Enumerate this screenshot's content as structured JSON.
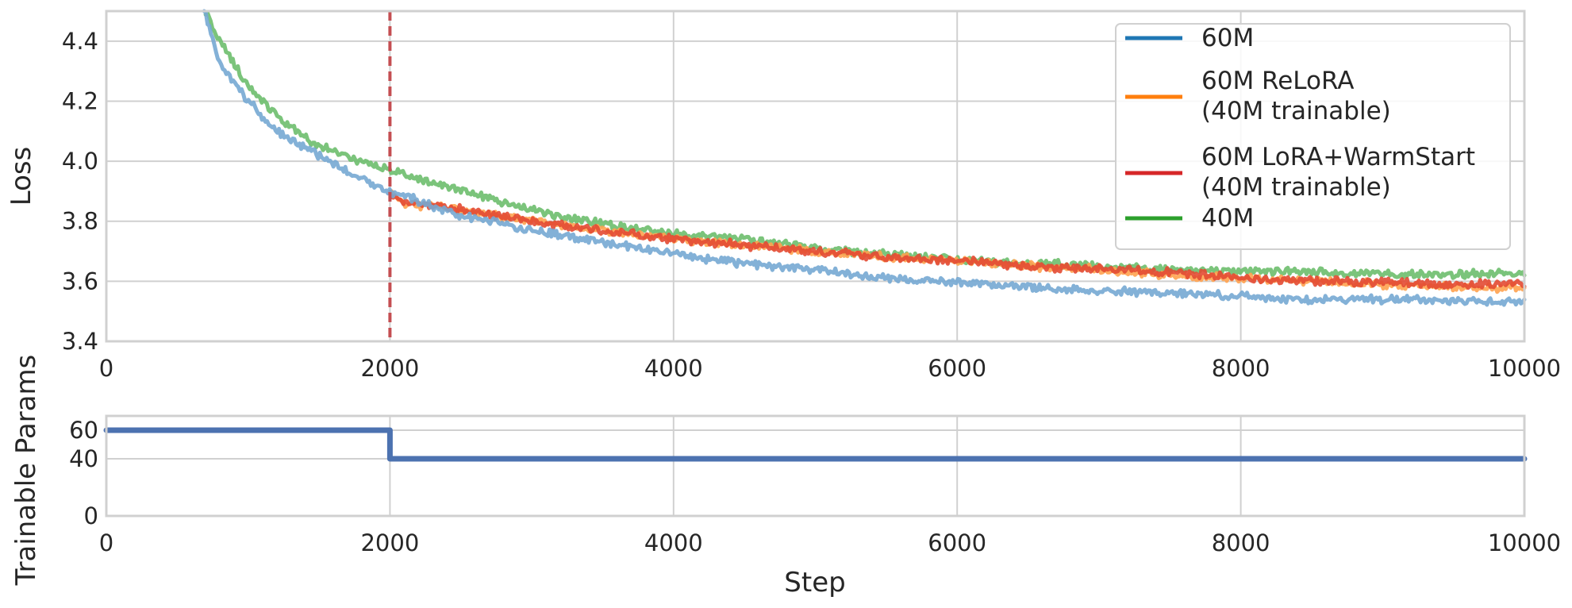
{
  "chart_data": [
    {
      "type": "line",
      "xlabel": "",
      "ylabel": "Loss",
      "xlim": [
        0,
        10000
      ],
      "ylim": [
        3.4,
        4.5
      ],
      "xticks": [
        "0",
        "2000",
        "4000",
        "6000",
        "8000",
        "10000"
      ],
      "yticks": [
        "3.4",
        "3.6",
        "3.8",
        "4.0",
        "4.2",
        "4.4"
      ],
      "grid": true,
      "legend_position": "top-right",
      "vline": {
        "x": 2000,
        "color": "#c44e52",
        "style": "dashed"
      },
      "legend": [
        {
          "lines": [
            "60M"
          ],
          "color": "#1f77b4"
        },
        {
          "lines": [
            "60M ReLoRA",
            "(40M trainable)"
          ],
          "color": "#ff7f0e"
        },
        {
          "lines": [
            "60M LoRA+WarmStart",
            "(40M trainable)"
          ],
          "color": "#d62728"
        },
        {
          "lines": [
            "40M"
          ],
          "color": "#2ca02c"
        }
      ],
      "series": [
        {
          "name": "40M",
          "color": "#6dbe6d",
          "x": [
            700,
            800,
            1000,
            1200,
            1500,
            1800,
            2000,
            2500,
            3000,
            3500,
            4000,
            4500,
            5000,
            5500,
            6000,
            6500,
            7000,
            7500,
            8000,
            8500,
            9000,
            9500,
            10000
          ],
          "y": [
            4.5,
            4.4,
            4.25,
            4.15,
            4.05,
            4.0,
            3.97,
            3.9,
            3.84,
            3.79,
            3.76,
            3.74,
            3.71,
            3.69,
            3.67,
            3.66,
            3.65,
            3.64,
            3.635,
            3.63,
            3.625,
            3.62,
            3.63
          ]
        },
        {
          "name": "60M ReLoRA (40M trainable)",
          "color": "#ffa24f",
          "x": [
            2000,
            2100,
            2500,
            3000,
            3500,
            4000,
            4500,
            5000,
            5500,
            6000,
            6500,
            7000,
            7500,
            8000,
            8500,
            9000,
            9500,
            10000
          ],
          "y": [
            3.9,
            3.86,
            3.84,
            3.8,
            3.77,
            3.74,
            3.72,
            3.7,
            3.68,
            3.67,
            3.65,
            3.64,
            3.62,
            3.61,
            3.6,
            3.59,
            3.58,
            3.58
          ]
        },
        {
          "name": "60M LoRA+WarmStart (40M trainable)",
          "color": "#e34a33",
          "x": [
            2000,
            2100,
            2500,
            3000,
            3500,
            4000,
            4500,
            5000,
            5500,
            6000,
            6500,
            7000,
            7500,
            8000,
            8500,
            9000,
            9500,
            10000
          ],
          "y": [
            3.89,
            3.86,
            3.84,
            3.8,
            3.77,
            3.74,
            3.72,
            3.7,
            3.68,
            3.67,
            3.65,
            3.64,
            3.63,
            3.61,
            3.6,
            3.6,
            3.59,
            3.59
          ]
        },
        {
          "name": "60M",
          "color": "#76a9d3",
          "x": [
            690,
            800,
            1000,
            1200,
            1500,
            1800,
            2000,
            2500,
            3000,
            3500,
            4000,
            4500,
            5000,
            5500,
            6000,
            6500,
            7000,
            7500,
            8000,
            8500,
            9000,
            9500,
            10000
          ],
          "y": [
            4.5,
            4.32,
            4.2,
            4.1,
            4.02,
            3.94,
            3.9,
            3.82,
            3.77,
            3.73,
            3.69,
            3.66,
            3.64,
            3.61,
            3.6,
            3.58,
            3.57,
            3.56,
            3.55,
            3.54,
            3.54,
            3.535,
            3.53
          ]
        }
      ]
    },
    {
      "type": "line",
      "xlabel": "Step",
      "ylabel": "Trainable Params",
      "xlim": [
        0,
        10000
      ],
      "ylim": [
        0,
        70
      ],
      "xticks": [
        "0",
        "2000",
        "4000",
        "6000",
        "8000",
        "10000"
      ],
      "yticks": [
        "0",
        "40",
        "60"
      ],
      "grid": true,
      "series": [
        {
          "name": "",
          "color": "#4c72b0",
          "x": [
            0,
            2000,
            2000,
            10000
          ],
          "y": [
            60,
            60,
            40,
            40
          ]
        }
      ]
    }
  ]
}
